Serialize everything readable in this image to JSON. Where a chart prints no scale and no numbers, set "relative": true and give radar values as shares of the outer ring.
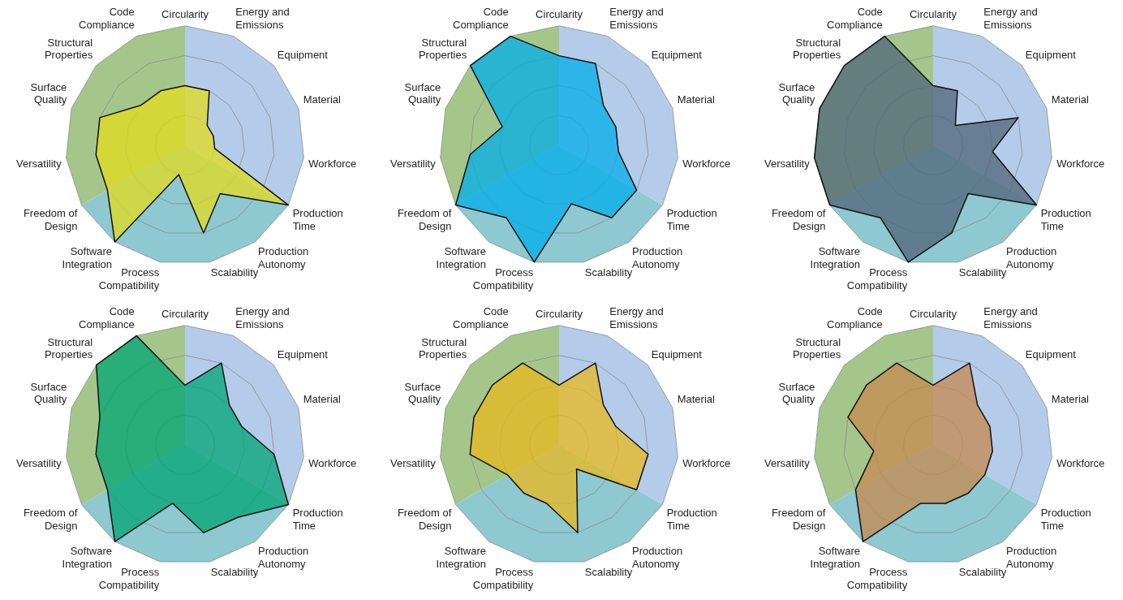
{
  "chart_data": [
    {
      "type": "radar",
      "relative": true,
      "grid": true,
      "marker": "none",
      "categories": [
        "Circularity",
        "Energy and Emissions",
        "Equipment",
        "Material",
        "Workforce",
        "Production Time",
        "Production Autonomy",
        "Scalability",
        "Process Compatibility",
        "Software Integration",
        "Freedom of Design",
        "Versatility",
        "Surface Quality",
        "Structural Properties",
        "Code Compliance"
      ],
      "series": [
        {
          "color": "#e3dc1c",
          "values": [
            0.5,
            0.5,
            0.25,
            0.25,
            0.25,
            1,
            0.5,
            0.75,
            0.25,
            1,
            0.75,
            0.75,
            0.75,
            0.5,
            0.5
          ]
        }
      ]
    },
    {
      "type": "radar",
      "relative": true,
      "grid": true,
      "marker": "none",
      "categories": [
        "Circularity",
        "Energy and Emissions",
        "Equipment",
        "Material",
        "Workforce",
        "Production Time",
        "Production Autonomy",
        "Scalability",
        "Process Compatibility",
        "Software Integration",
        "Freedom of Design",
        "Versatility",
        "Surface Quality",
        "Structural Properties",
        "Code Compliance"
      ],
      "series": [
        {
          "color": "#00aeea",
          "values": [
            0.75,
            0.75,
            0.5,
            0.5,
            0.5,
            0.75,
            0.75,
            0.5,
            1,
            0.75,
            1,
            0.75,
            0.5,
            1,
            1
          ]
        }
      ]
    },
    {
      "type": "radar",
      "relative": true,
      "grid": true,
      "marker": "none",
      "categories": [
        "Circularity",
        "Energy and Emissions",
        "Equipment",
        "Material",
        "Workforce",
        "Production Time",
        "Production Autonomy",
        "Scalability",
        "Process Compatibility",
        "Software Integration",
        "Freedom of Design",
        "Versatility",
        "Surface Quality",
        "Structural Properties",
        "Code Compliance"
      ],
      "series": [
        {
          "color": "#4f6478",
          "values": [
            0.5,
            0.5,
            0.25,
            0.75,
            0.5,
            1,
            0.5,
            0.75,
            1,
            0.75,
            1,
            1,
            1,
            1,
            1
          ]
        }
      ]
    },
    {
      "type": "radar",
      "relative": true,
      "grid": true,
      "marker": "none",
      "categories": [
        "Circularity",
        "Energy and Emissions",
        "Equipment",
        "Material",
        "Workforce",
        "Production Time",
        "Production Autonomy",
        "Scalability",
        "Process Compatibility",
        "Software Integration",
        "Freedom of Design",
        "Versatility",
        "Surface Quality",
        "Structural Properties",
        "Code Compliance"
      ],
      "series": [
        {
          "color": "#00a474",
          "values": [
            0.5,
            0.75,
            0.5,
            0.5,
            0.75,
            1,
            0.75,
            0.75,
            0.5,
            1,
            0.75,
            0.75,
            0.75,
            1,
            1
          ]
        }
      ]
    },
    {
      "type": "radar",
      "relative": true,
      "grid": true,
      "marker": "none",
      "categories": [
        "Circularity",
        "Energy and Emissions",
        "Equipment",
        "Material",
        "Workforce",
        "Production Time",
        "Production Autonomy",
        "Scalability",
        "Process Compatibility",
        "Software Integration",
        "Freedom of Design",
        "Versatility",
        "Surface Quality",
        "Structural Properties",
        "Code Compliance"
      ],
      "series": [
        {
          "color": "#eab81c",
          "values": [
            0.5,
            0.75,
            0.5,
            0.5,
            0.75,
            0.75,
            0.25,
            0.75,
            0.5,
            0.5,
            0.5,
            0.75,
            0.75,
            0.75,
            0.75
          ]
        }
      ]
    },
    {
      "type": "radar",
      "relative": true,
      "grid": true,
      "marker": "none",
      "categories": [
        "Circularity",
        "Energy and Emissions",
        "Equipment",
        "Material",
        "Workforce",
        "Production Time",
        "Production Autonomy",
        "Scalability",
        "Process Compatibility",
        "Software Integration",
        "Freedom of Design",
        "Versatility",
        "Surface Quality",
        "Structural Properties",
        "Code Compliance"
      ],
      "series": [
        {
          "color": "#c58a4e",
          "values": [
            0.5,
            0.75,
            0.5,
            0.5,
            0.5,
            0.5,
            0.5,
            0.5,
            0.5,
            1,
            0.75,
            0.5,
            0.75,
            0.75,
            0.75
          ]
        }
      ]
    }
  ]
}
